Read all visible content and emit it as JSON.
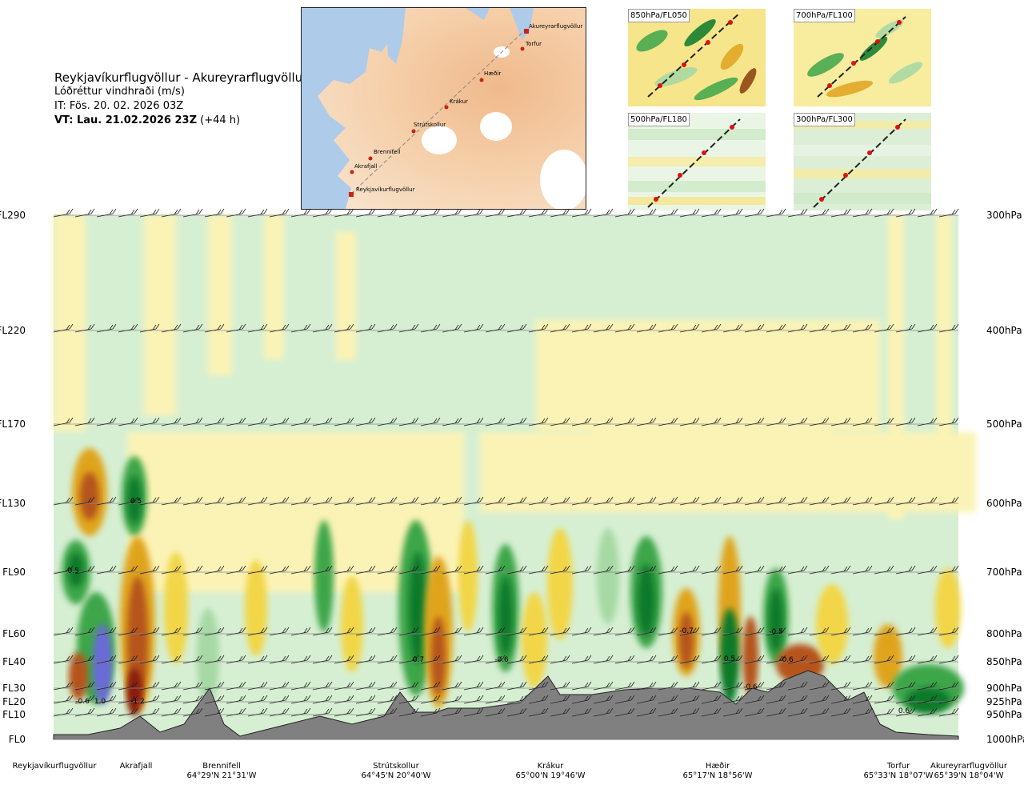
{
  "header": {
    "route": "Reykjavíkurflugvöllur - Akureyrarflugvöllur",
    "variable": "Lóðréttur vindhraði (m/s)",
    "issue_time": "IT: Fös. 20. 02. 2026 03Z",
    "valid_time": "VT: Lau. 21.02.2026 23Z",
    "lead": "(+44 h)"
  },
  "map": {
    "points": [
      "Akureyrarflugvöllur",
      "Torfur",
      "Hæðir",
      "Krákur",
      "Strútskollur",
      "Brennifell",
      "Akrafjall",
      "Reykjavíkurflugvöllur"
    ]
  },
  "panels": [
    {
      "label": "850hPa/FL050"
    },
    {
      "label": "700hPa/FL100"
    },
    {
      "label": "500hPa/FL180"
    },
    {
      "label": "300hPa/FL300"
    }
  ],
  "chart_data": {
    "type": "heatmap",
    "title": "Reykjavíkurflugvöllur - Akureyrarflugvöllur",
    "subtitle": "Lóðréttur vindhraði (m/s)",
    "left_axis_levels": [
      "FL290",
      "FL220",
      "FL170",
      "FL130",
      "FL90",
      "FL60",
      "FL40",
      "FL30",
      "FL20",
      "FL10",
      "FL0"
    ],
    "right_axis_levels": [
      "300hPa",
      "400hPa",
      "500hPa",
      "600hPa",
      "700hPa",
      "800hPa",
      "850hPa",
      "900hPa",
      "925hPa",
      "950hPa",
      "1000hPa"
    ],
    "stations": [
      {
        "name": "Reykjavíkurflugvöllur",
        "coord": ""
      },
      {
        "name": "Akrafjall",
        "coord": ""
      },
      {
        "name": "Brennifell",
        "coord": "64°29'N 21°31'W"
      },
      {
        "name": "Strútskollur",
        "coord": "64°45'N 20°40'W"
      },
      {
        "name": "Krákur",
        "coord": "65°00'N 19°46'W"
      },
      {
        "name": "Hæðir",
        "coord": "65°17'N 18°56'W"
      },
      {
        "name": "Torfur",
        "coord": "65°33'N 18°07'W"
      },
      {
        "name": "Akureyrarflugvöllur",
        "coord": "65°39'N 18°04'W"
      }
    ],
    "annotations": [
      "-0.6",
      "1.0",
      "-1.2",
      "0.5",
      "-0.5",
      "-0.7",
      "0.5",
      "-0.5",
      "0.7",
      "-0.6",
      "-0.6",
      "-0.6",
      "0.6"
    ],
    "colors": {
      "strong_up": "#0a7a2a",
      "up": "#3ea64a",
      "weak_up": "#a6d9a4",
      "calm_up": "#d6efd2",
      "calm_down": "#fbf3b5",
      "weak_down": "#f2d646",
      "down": "#e0a41e",
      "strong_down": "#b5541a",
      "extreme_down": "#8a1e0e",
      "extreme_up": "#6a6ad8",
      "terrain": "#808080"
    }
  }
}
